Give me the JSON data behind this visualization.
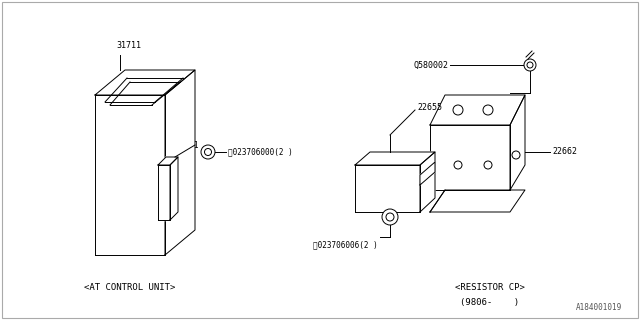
{
  "background_color": "#ffffff",
  "line_color": "#000000",
  "text_color": "#000000",
  "fig_width": 6.4,
  "fig_height": 3.2,
  "dpi": 100,
  "watermark": "A184001019",
  "left_label": "<AT CONTROL UNIT>",
  "right_label_line1": "<RESISTOR CP>",
  "right_label_line2": "(9806-    )",
  "label_31711": "31711",
  "label_N000": "ⓝ023706000(2 )",
  "label_Q580002": "Q580002",
  "label_22655": "22655",
  "label_22662": "22662",
  "label_N006": "ⓝ023706006(2 )"
}
